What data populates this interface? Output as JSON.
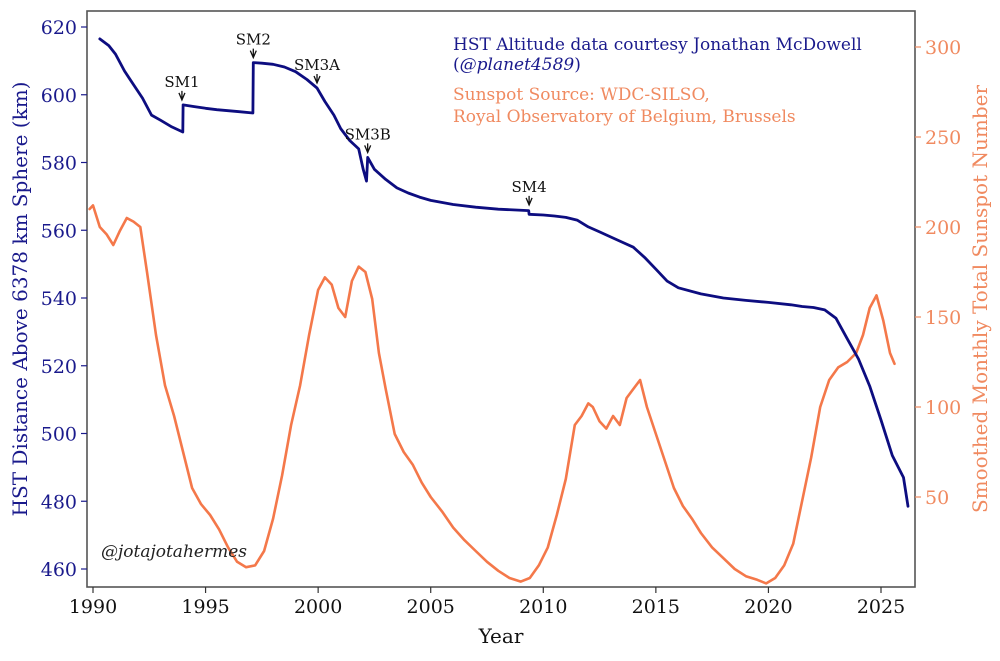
{
  "chart_data": {
    "type": "line",
    "title": "",
    "xlabel": "Year",
    "ylabel_left": "HST Distance Above 6378 km Sphere (km)",
    "ylabel_right": "Smoothed Monthly Total Sunspot Number",
    "xlim": [
      1989.8,
      2026.6
    ],
    "ylim_left": [
      455,
      625
    ],
    "ylim_right": [
      0,
      312
    ],
    "x_ticks": [
      1990,
      1995,
      2000,
      2005,
      2010,
      2015,
      2020,
      2025
    ],
    "y_left_ticks": [
      460,
      480,
      500,
      520,
      540,
      560,
      580,
      600,
      620
    ],
    "y_right_ticks": [
      50,
      100,
      150,
      200,
      250,
      300
    ],
    "grid": false,
    "colors": {
      "altitude": "#0d0d80",
      "sunspot": "#f4784a",
      "left_axis_text": "#1a1a8c",
      "right_axis_text": "#f08a60",
      "frame": "#555555"
    },
    "series": [
      {
        "name": "HST altitude (km)",
        "axis": "left",
        "x": [
          1990.3,
          1990.7,
          1991.0,
          1991.4,
          1991.8,
          1992.2,
          1992.6,
          1993.0,
          1993.5,
          1993.99,
          1994.0,
          1994.5,
          1995.0,
          1995.5,
          1996.0,
          1996.5,
          1997.1,
          1997.12,
          1997.5,
          1998.0,
          1998.5,
          1999.0,
          1999.5,
          1999.95,
          2000.3,
          2000.7,
          2001.0,
          2001.4,
          2001.8,
          2002.0,
          2002.15,
          2002.2,
          2002.5,
          2003.0,
          2003.5,
          2004.0,
          2004.5,
          2005.0,
          2006.0,
          2007.0,
          2008.0,
          2009.35,
          2009.37,
          2010.0,
          2010.5,
          2011.0,
          2011.5,
          2012.0,
          2012.5,
          2013.0,
          2013.5,
          2014.0,
          2014.5,
          2015.0,
          2015.5,
          2016.0,
          2017.0,
          2018.0,
          2019.0,
          2020.0,
          2021.0,
          2021.5,
          2022.0,
          2022.5,
          2023.0,
          2023.5,
          2024.0,
          2024.5,
          2025.0,
          2025.5,
          2026.0,
          2026.2
        ],
        "values": [
          616.5,
          614.5,
          612.0,
          607.0,
          603.0,
          599.0,
          594.0,
          592.5,
          590.5,
          589.0,
          597.0,
          596.5,
          596.0,
          595.6,
          595.3,
          595.0,
          594.6,
          609.5,
          609.3,
          609.0,
          608.2,
          606.8,
          604.5,
          602.0,
          598.0,
          594.0,
          590.0,
          586.5,
          584.0,
          578.0,
          574.5,
          581.5,
          578.0,
          575.0,
          572.5,
          571.0,
          569.8,
          568.8,
          567.6,
          566.8,
          566.2,
          565.8,
          564.7,
          564.5,
          564.2,
          563.8,
          563.0,
          561.0,
          559.5,
          558.0,
          556.5,
          555.0,
          552.0,
          548.5,
          545.0,
          543.0,
          541.2,
          540.0,
          539.3,
          538.7,
          538.0,
          537.5,
          537.2,
          536.5,
          534.0,
          528.0,
          522.0,
          514.0,
          504.0,
          493.5,
          487.0,
          478.5
        ]
      },
      {
        "name": "Smoothed monthly total sunspot number",
        "axis": "right",
        "x": [
          1989.85,
          1990.0,
          1990.3,
          1990.6,
          1990.9,
          1991.2,
          1991.5,
          1991.8,
          1992.1,
          1992.4,
          1992.8,
          1993.2,
          1993.6,
          1994.0,
          1994.4,
          1994.8,
          1995.2,
          1995.6,
          1996.0,
          1996.4,
          1996.8,
          1997.2,
          1997.6,
          1998.0,
          1998.4,
          1998.8,
          1999.2,
          1999.6,
          2000.0,
          2000.3,
          2000.6,
          2000.9,
          2001.2,
          2001.5,
          2001.8,
          2002.1,
          2002.4,
          2002.7,
          2003.0,
          2003.4,
          2003.8,
          2004.2,
          2004.6,
          2005.0,
          2005.5,
          2006.0,
          2006.5,
          2007.0,
          2007.5,
          2008.0,
          2008.5,
          2009.0,
          2009.4,
          2009.8,
          2010.2,
          2010.6,
          2011.0,
          2011.4,
          2011.7,
          2012.0,
          2012.2,
          2012.5,
          2012.8,
          2013.1,
          2013.4,
          2013.7,
          2014.0,
          2014.3,
          2014.6,
          2015.0,
          2015.4,
          2015.8,
          2016.2,
          2016.6,
          2017.0,
          2017.5,
          2018.0,
          2018.5,
          2019.0,
          2019.5,
          2019.9,
          2020.3,
          2020.7,
          2021.1,
          2021.5,
          2021.9,
          2022.3,
          2022.7,
          2023.1,
          2023.5,
          2023.9,
          2024.2,
          2024.5,
          2024.8,
          2025.1,
          2025.4,
          2025.6
        ],
        "values": [
          210,
          212,
          200,
          196,
          190,
          198,
          205,
          203,
          200,
          175,
          140,
          112,
          95,
          75,
          55,
          46,
          40,
          32,
          22,
          14,
          11,
          12,
          20,
          38,
          62,
          90,
          112,
          140,
          165,
          172,
          168,
          155,
          150,
          170,
          178,
          175,
          160,
          130,
          110,
          85,
          75,
          68,
          58,
          50,
          42,
          33,
          26,
          20,
          14,
          9,
          5,
          3,
          5,
          12,
          22,
          40,
          60,
          90,
          95,
          102,
          100,
          92,
          88,
          95,
          90,
          105,
          110,
          115,
          100,
          85,
          70,
          55,
          45,
          38,
          30,
          22,
          16,
          10,
          6,
          4,
          2,
          5,
          12,
          24,
          48,
          72,
          100,
          115,
          122,
          125,
          130,
          140,
          155,
          162,
          148,
          130,
          124
        ]
      }
    ],
    "annotations": [
      {
        "label": "SM1",
        "x": 1993.95,
        "y_km": 597
      },
      {
        "label": "SM2",
        "x": 1997.12,
        "y_km": 609.5
      },
      {
        "label": "SM3A",
        "x": 1999.95,
        "y_km": 602
      },
      {
        "label": "SM3B",
        "x": 2002.2,
        "y_km": 581.5
      },
      {
        "label": "SM4",
        "x": 2009.37,
        "y_km": 566
      }
    ],
    "credits": {
      "altitude_line1": "HST Altitude data courtesy Jonathan McDowell",
      "altitude_line2_open": "(",
      "altitude_line2_handle": "@planet4589",
      "altitude_line2_close": ")",
      "sunspot_line1": "Sunspot Source: WDC-SILSO,",
      "sunspot_line2": "Royal Observatory of Belgium, Brussels",
      "watermark": "@jotajotahermes"
    }
  }
}
